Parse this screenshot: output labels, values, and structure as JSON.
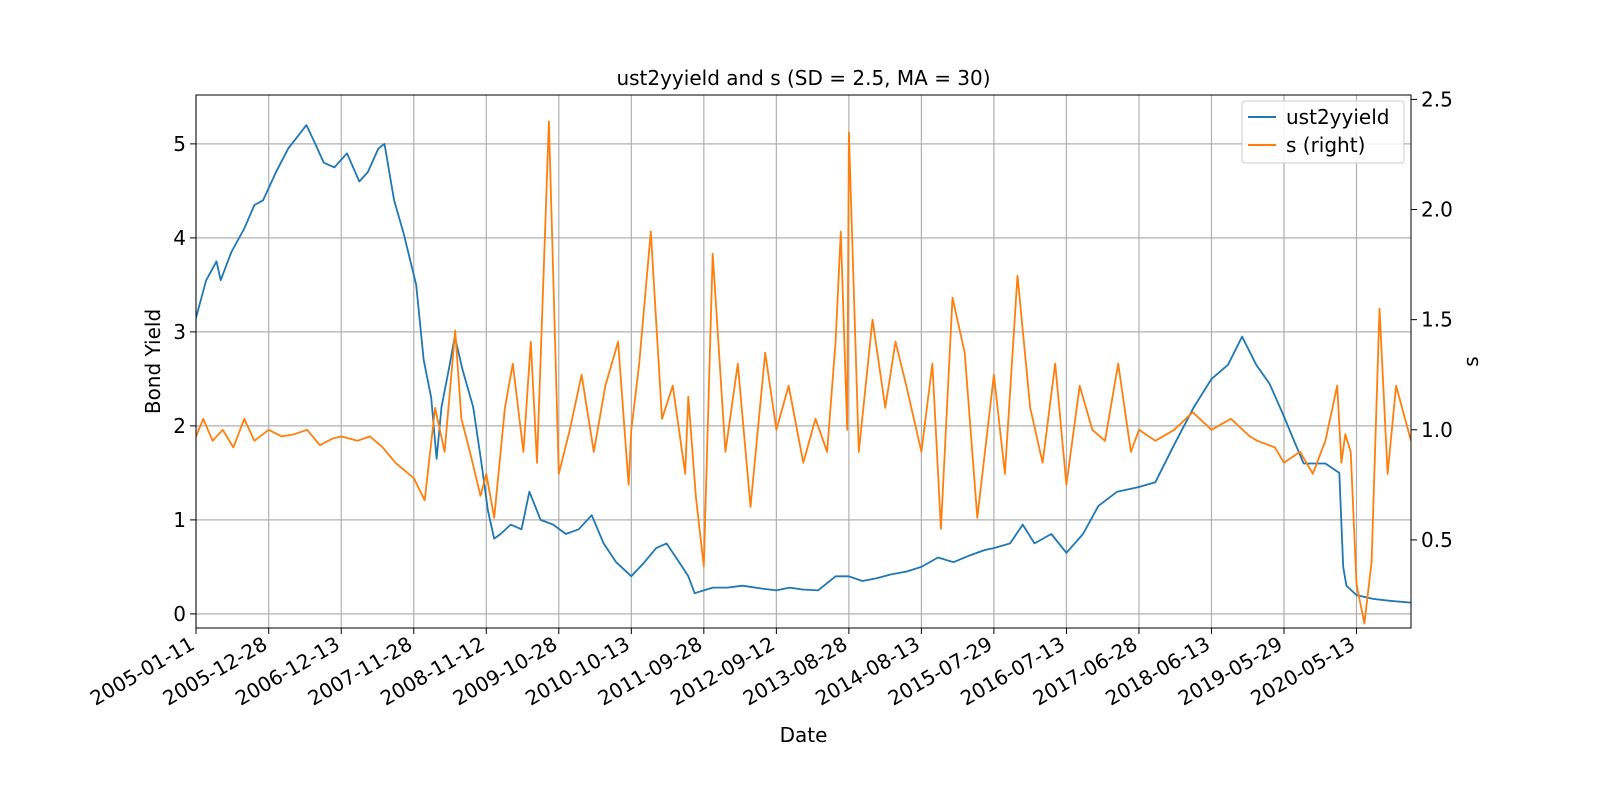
{
  "chart_data": {
    "type": "line",
    "title": "ust2yyield and s (SD = 2.5, MA = 30)",
    "xlabel": "Date",
    "ylabel": "Bond Yield",
    "ylabel_right": "s",
    "x_range": [
      "2005-01-11",
      "2021-01-31"
    ],
    "x_ticks": [
      "2005-01-11",
      "2005-12-28",
      "2006-12-13",
      "2007-11-28",
      "2008-11-12",
      "2009-10-28",
      "2010-10-13",
      "2011-09-28",
      "2012-09-12",
      "2013-08-28",
      "2014-08-13",
      "2015-07-29",
      "2016-07-13",
      "2017-06-28",
      "2018-06-13",
      "2019-05-29",
      "2020-05-13"
    ],
    "ylim_left": [
      -0.15,
      5.52
    ],
    "yticks_left": [
      0,
      1,
      2,
      3,
      4,
      5
    ],
    "ylim_right": [
      0.1,
      2.52
    ],
    "yticks_right": [
      0.5,
      1.0,
      1.5,
      2.0,
      2.5
    ],
    "grid": true,
    "legend_position": "top-right",
    "series": [
      {
        "name": "ust2yyield",
        "axis": "left",
        "color": "#1f77b4",
        "x": [
          "2005-01-11",
          "2005-03-01",
          "2005-04-20",
          "2005-05-10",
          "2005-07-01",
          "2005-09-01",
          "2005-10-20",
          "2005-12-01",
          "2006-02-01",
          "2006-04-01",
          "2006-06-28",
          "2006-08-10",
          "2006-09-20",
          "2006-11-10",
          "2007-01-10",
          "2007-03-10",
          "2007-04-20",
          "2007-06-10",
          "2007-07-10",
          "2007-08-25",
          "2007-10-10",
          "2007-12-10",
          "2008-01-15",
          "2008-02-20",
          "2008-03-17",
          "2008-04-10",
          "2008-05-15",
          "2008-06-13",
          "2008-07-20",
          "2008-09-10",
          "2008-10-20",
          "2008-11-20",
          "2008-12-20",
          "2009-01-20",
          "2009-03-10",
          "2009-05-01",
          "2009-06-08",
          "2009-08-01",
          "2009-10-01",
          "2009-12-01",
          "2010-02-01",
          "2010-04-05",
          "2010-06-01",
          "2010-08-01",
          "2010-10-13",
          "2010-12-15",
          "2011-02-10",
          "2011-04-01",
          "2011-06-01",
          "2011-07-15",
          "2011-08-15",
          "2011-09-28",
          "2011-11-10",
          "2012-01-20",
          "2012-04-01",
          "2012-07-01",
          "2012-09-12",
          "2012-11-15",
          "2013-01-15",
          "2013-04-01",
          "2013-06-25",
          "2013-08-28",
          "2013-11-01",
          "2014-01-10",
          "2014-03-20",
          "2014-06-01",
          "2014-08-13",
          "2014-11-01",
          "2015-01-15",
          "2015-04-01",
          "2015-06-15",
          "2015-07-29",
          "2015-10-15",
          "2015-12-15",
          "2016-02-10",
          "2016-05-01",
          "2016-07-13",
          "2016-10-01",
          "2016-12-15",
          "2017-03-15",
          "2017-06-28",
          "2017-09-15",
          "2017-12-15",
          "2018-03-20",
          "2018-06-13",
          "2018-09-01",
          "2018-11-08",
          "2019-01-15",
          "2019-03-20",
          "2019-05-29",
          "2019-07-15",
          "2019-09-01",
          "2019-12-15",
          "2020-02-20",
          "2020-03-10",
          "2020-03-25",
          "2020-05-13",
          "2020-08-01",
          "2020-10-15",
          "2021-01-31"
        ],
        "y": [
          3.15,
          3.55,
          3.75,
          3.55,
          3.85,
          4.1,
          4.35,
          4.4,
          4.7,
          4.95,
          5.2,
          5.0,
          4.8,
          4.75,
          4.9,
          4.6,
          4.7,
          4.95,
          5.0,
          4.4,
          4.05,
          3.5,
          2.7,
          2.3,
          1.65,
          2.2,
          2.6,
          2.95,
          2.6,
          2.2,
          1.6,
          1.1,
          0.8,
          0.85,
          0.95,
          0.9,
          1.3,
          1.0,
          0.95,
          0.85,
          0.9,
          1.05,
          0.75,
          0.55,
          0.4,
          0.55,
          0.7,
          0.75,
          0.55,
          0.4,
          0.22,
          0.25,
          0.28,
          0.28,
          0.3,
          0.27,
          0.25,
          0.28,
          0.26,
          0.25,
          0.4,
          0.4,
          0.35,
          0.38,
          0.42,
          0.45,
          0.5,
          0.6,
          0.55,
          0.62,
          0.68,
          0.7,
          0.75,
          0.95,
          0.75,
          0.85,
          0.65,
          0.85,
          1.15,
          1.3,
          1.35,
          1.4,
          1.8,
          2.2,
          2.5,
          2.65,
          2.95,
          2.65,
          2.45,
          2.1,
          1.85,
          1.6,
          1.6,
          1.5,
          0.5,
          0.3,
          0.2,
          0.16,
          0.14,
          0.12
        ]
      },
      {
        "name": "s (right)",
        "axis": "right",
        "color": "#ff7f0e",
        "x": [
          "2005-01-11",
          "2005-02-15",
          "2005-04-01",
          "2005-05-20",
          "2005-07-10",
          "2005-09-01",
          "2005-10-20",
          "2005-12-28",
          "2006-03-01",
          "2006-05-01",
          "2006-07-01",
          "2006-09-01",
          "2006-11-01",
          "2006-12-13",
          "2007-03-01",
          "2007-05-01",
          "2007-07-01",
          "2007-09-01",
          "2007-11-28",
          "2008-01-20",
          "2008-03-10",
          "2008-04-25",
          "2008-06-15",
          "2008-07-15",
          "2008-08-25",
          "2008-10-15",
          "2008-11-12",
          "2008-12-20",
          "2009-02-10",
          "2009-03-20",
          "2009-05-10",
          "2009-06-15",
          "2009-07-15",
          "2009-09-10",
          "2009-10-28",
          "2009-12-20",
          "2010-02-15",
          "2010-04-15",
          "2010-06-10",
          "2010-08-10",
          "2010-09-30",
          "2010-10-13",
          "2010-11-20",
          "2011-01-15",
          "2011-03-10",
          "2011-05-01",
          "2011-06-30",
          "2011-07-15",
          "2011-08-20",
          "2011-09-28",
          "2011-11-10",
          "2012-01-10",
          "2012-03-10",
          "2012-05-10",
          "2012-07-20",
          "2012-09-12",
          "2012-11-10",
          "2013-01-20",
          "2013-03-20",
          "2013-05-15",
          "2013-06-25",
          "2013-07-20",
          "2013-08-20",
          "2013-08-28",
          "2013-10-15",
          "2013-12-20",
          "2014-02-20",
          "2014-04-10",
          "2014-06-01",
          "2014-08-13",
          "2014-10-05",
          "2014-11-15",
          "2015-01-10",
          "2015-03-10",
          "2015-05-10",
          "2015-07-29",
          "2015-09-20",
          "2015-11-20",
          "2016-01-20",
          "2016-03-20",
          "2016-05-20",
          "2016-07-13",
          "2016-09-15",
          "2016-11-15",
          "2017-01-15",
          "2017-03-20",
          "2017-05-20",
          "2017-06-28",
          "2017-09-15",
          "2017-12-15",
          "2018-03-15",
          "2018-06-13",
          "2018-09-15",
          "2018-12-15",
          "2019-01-20",
          "2019-04-15",
          "2019-05-29",
          "2019-08-15",
          "2019-10-15",
          "2019-12-15",
          "2020-02-10",
          "2020-03-01",
          "2020-03-20",
          "2020-04-15",
          "2020-05-13",
          "2020-06-20",
          "2020-07-25",
          "2020-09-01",
          "2020-10-10",
          "2020-11-20",
          "2021-01-31"
        ],
        "y": [
          0.97,
          1.05,
          0.95,
          1.0,
          0.92,
          1.05,
          0.95,
          1.0,
          0.97,
          0.98,
          1.0,
          0.93,
          0.96,
          0.97,
          0.95,
          0.97,
          0.92,
          0.85,
          0.78,
          0.68,
          1.1,
          0.9,
          1.45,
          1.05,
          0.9,
          0.7,
          0.8,
          0.6,
          1.1,
          1.3,
          0.9,
          1.4,
          0.85,
          2.4,
          0.8,
          1.0,
          1.25,
          0.9,
          1.2,
          1.4,
          0.75,
          1.0,
          1.3,
          1.9,
          1.05,
          1.2,
          0.8,
          1.15,
          0.7,
          0.38,
          1.8,
          0.9,
          1.3,
          0.65,
          1.35,
          1.0,
          1.2,
          0.85,
          1.05,
          0.9,
          1.4,
          1.9,
          1.0,
          2.35,
          0.9,
          1.5,
          1.1,
          1.4,
          1.2,
          0.9,
          1.3,
          0.55,
          1.6,
          1.35,
          0.6,
          1.25,
          0.8,
          1.7,
          1.1,
          0.85,
          1.3,
          0.75,
          1.2,
          1.0,
          0.95,
          1.3,
          0.9,
          1.0,
          0.95,
          1.0,
          1.08,
          1.0,
          1.05,
          0.97,
          0.95,
          0.92,
          0.85,
          0.9,
          0.8,
          0.95,
          1.2,
          0.85,
          0.98,
          0.9,
          0.3,
          0.12,
          0.4,
          1.55,
          0.8,
          1.2,
          0.95
        ]
      }
    ]
  }
}
